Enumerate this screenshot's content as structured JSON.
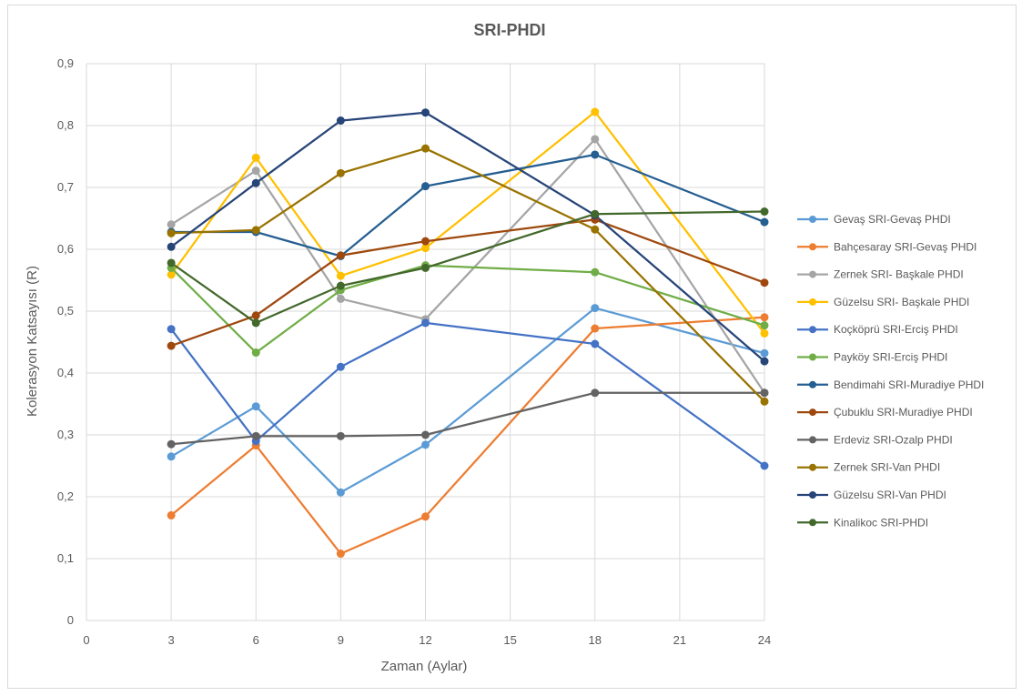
{
  "chart_data": {
    "type": "line",
    "title": "SRI-PHDI",
    "xlabel": "Zaman (Aylar)",
    "ylabel": "Kolerasyon Katsayısı (R)",
    "xlim": [
      0,
      24
    ],
    "ylim": [
      0,
      0.9
    ],
    "x_ticks": [
      "0",
      "3",
      "6",
      "9",
      "12",
      "15",
      "18",
      "21",
      "24"
    ],
    "y_ticks": [
      "0",
      "0,1",
      "0,2",
      "0,3",
      "0,4",
      "0,5",
      "0,6",
      "0,7",
      "0,8",
      "0,9"
    ],
    "grid": true,
    "legend_position": "right",
    "x": [
      3,
      6,
      9,
      12,
      18,
      24
    ],
    "series": [
      {
        "name": "Gevaş SRI-Gevaş PHDI",
        "color": "#5b9bd5",
        "values": [
          0.265,
          0.346,
          0.207,
          0.284,
          0.505,
          0.432
        ]
      },
      {
        "name": "Bahçesaray SRI-Gevaş PHDI",
        "color": "#ed7d31",
        "values": [
          0.17,
          0.283,
          0.108,
          0.168,
          0.472,
          0.49
        ]
      },
      {
        "name": "Zernek SRI- Başkale PHDI",
        "color": "#a5a5a5",
        "values": [
          0.64,
          0.727,
          0.52,
          0.487,
          0.778,
          0.368
        ]
      },
      {
        "name": "Güzelsu SRI- Başkale PHDI",
        "color": "#ffc000",
        "values": [
          0.559,
          0.748,
          0.557,
          0.602,
          0.822,
          0.464
        ]
      },
      {
        "name": "Koçköprü SRI-Erciş PHDI",
        "color": "#4472c4",
        "values": [
          0.471,
          0.29,
          0.41,
          0.481,
          0.447,
          0.25
        ]
      },
      {
        "name": "Payköy SRI-Erciş PHDI",
        "color": "#70ad47",
        "values": [
          0.57,
          0.433,
          0.534,
          0.574,
          0.563,
          0.477
        ]
      },
      {
        "name": "Bendimahi SRI-Muradiye PHDI",
        "color": "#255e91",
        "values": [
          0.628,
          0.628,
          0.589,
          0.702,
          0.753,
          0.644
        ]
      },
      {
        "name": "Çubuklu SRI-Muradiye PHDI",
        "color": "#9e480e",
        "values": [
          0.444,
          0.493,
          0.59,
          0.613,
          0.648,
          0.546
        ]
      },
      {
        "name": "Erdeviz SRI-Ozalp PHDI",
        "color": "#636363",
        "values": [
          0.285,
          0.298,
          0.298,
          0.3,
          0.368,
          0.368
        ]
      },
      {
        "name": "Zernek SRI-Van PHDI",
        "color": "#997300",
        "values": [
          0.626,
          0.631,
          0.723,
          0.763,
          0.632,
          0.354
        ]
      },
      {
        "name": "Güzelsu SRI-Van PHDI",
        "color": "#264478",
        "values": [
          0.604,
          0.707,
          0.808,
          0.821,
          0.655,
          0.419
        ]
      },
      {
        "name": "Kinalikoc SRI-PHDI",
        "color": "#43682b",
        "values": [
          0.578,
          0.481,
          0.541,
          0.57,
          0.657,
          0.661
        ]
      }
    ]
  }
}
